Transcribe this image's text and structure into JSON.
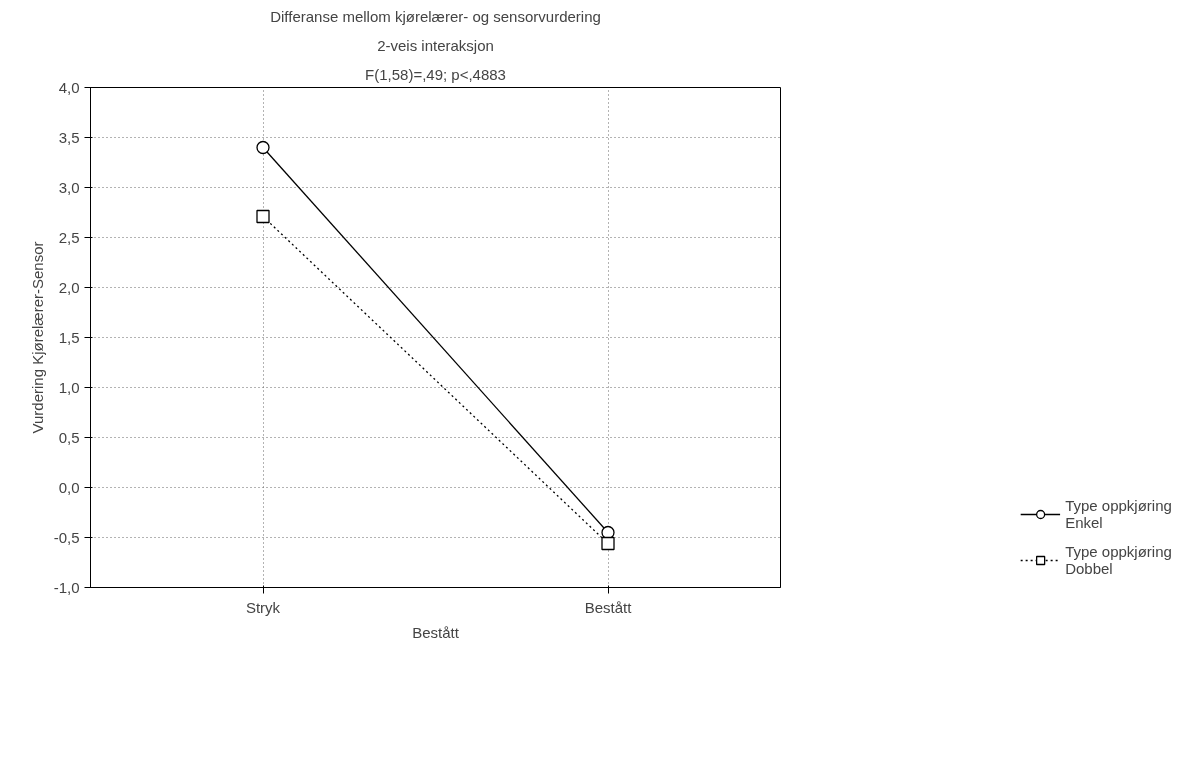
{
  "chart_data": {
    "type": "line",
    "title": "Differanse mellom kjørelærer- og sensorvurdering",
    "subtitle": "2-veis interaksjon",
    "annotations": [
      "F(1,58)=,49; p<,4883"
    ],
    "xlabel": "Bestått",
    "ylabel": "Vurdering Kjørelærer-Sensor",
    "categories": [
      "Stryk",
      "Bestått"
    ],
    "series": [
      {
        "name": "Type oppkjøring\nEnkel",
        "color": "#000000",
        "values": [
          3.4,
          -0.45
        ],
        "marker": "circle",
        "line_style": "solid"
      },
      {
        "name": "Type oppkjøring\nDobbel",
        "color": "#000000",
        "values": [
          2.71,
          -0.56
        ],
        "marker": "square",
        "line_style": "dotted"
      }
    ],
    "ylim": [
      -1.0,
      4.0
    ],
    "yticks": [
      {
        "value": -1.0,
        "label": "-1,0"
      },
      {
        "value": -0.5,
        "label": "-0,5"
      },
      {
        "value": 0.0,
        "label": "0,0"
      },
      {
        "value": 0.5,
        "label": "0,5"
      },
      {
        "value": 1.0,
        "label": "1,0"
      },
      {
        "value": 1.5,
        "label": "1,5"
      },
      {
        "value": 2.0,
        "label": "2,0"
      },
      {
        "value": 2.5,
        "label": "2,5"
      },
      {
        "value": 3.0,
        "label": "3,0"
      },
      {
        "value": 3.5,
        "label": "3,5"
      },
      {
        "value": 4.0,
        "label": "4,0"
      }
    ],
    "grid": true,
    "legend": "right"
  }
}
